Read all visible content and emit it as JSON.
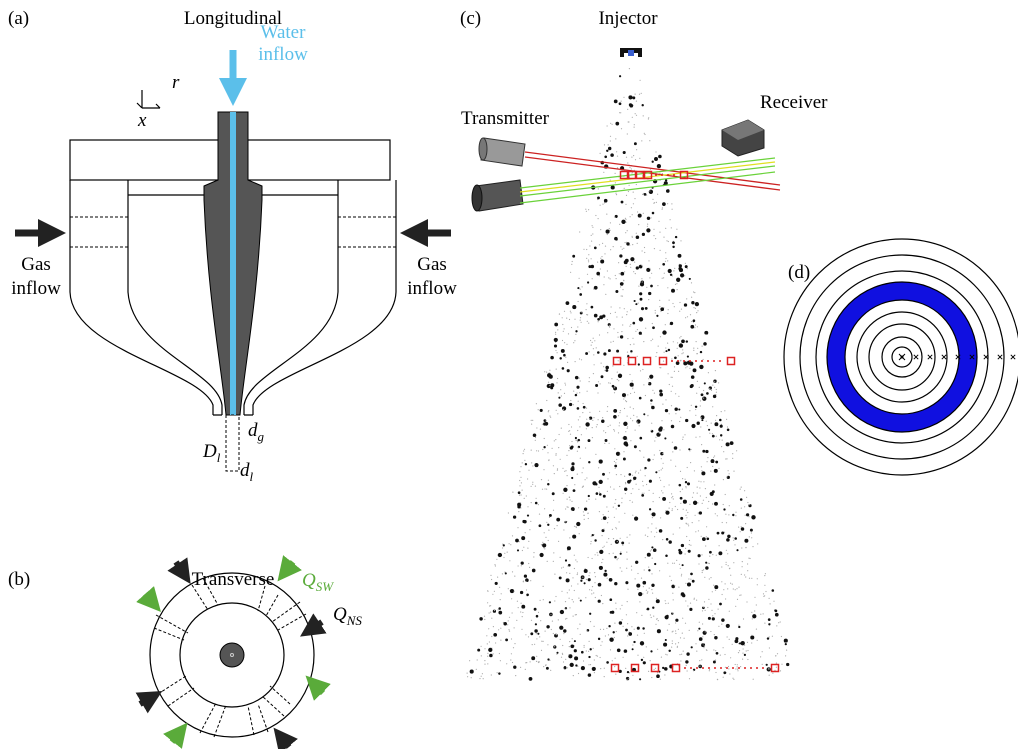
{
  "panel_a": {
    "label": "(a)",
    "title": "Longitudinal",
    "water_inflow": [
      "Water",
      "inflow"
    ],
    "gas_inflow_left": [
      "Gas",
      "inflow"
    ],
    "gas_inflow_right": [
      "Gas",
      "inflow"
    ],
    "axis_r": "r",
    "axis_x": "x",
    "D_l": {
      "symbol": "D",
      "subscript": "l"
    },
    "d_g": {
      "symbol": "d",
      "subscript": "g"
    },
    "d_l": {
      "symbol": "d",
      "subscript": "l"
    }
  },
  "panel_b": {
    "label": "(b)",
    "title": "Transverse",
    "Q_SW": {
      "symbol": "Q",
      "subscript": "SW"
    },
    "Q_NS": {
      "symbol": "Q",
      "subscript": "NS"
    }
  },
  "panel_c": {
    "label": "(c)",
    "title": "Injector",
    "transmitter": "Transmitter",
    "receiver": "Receiver"
  },
  "panel_d": {
    "label": "(d)"
  }
}
